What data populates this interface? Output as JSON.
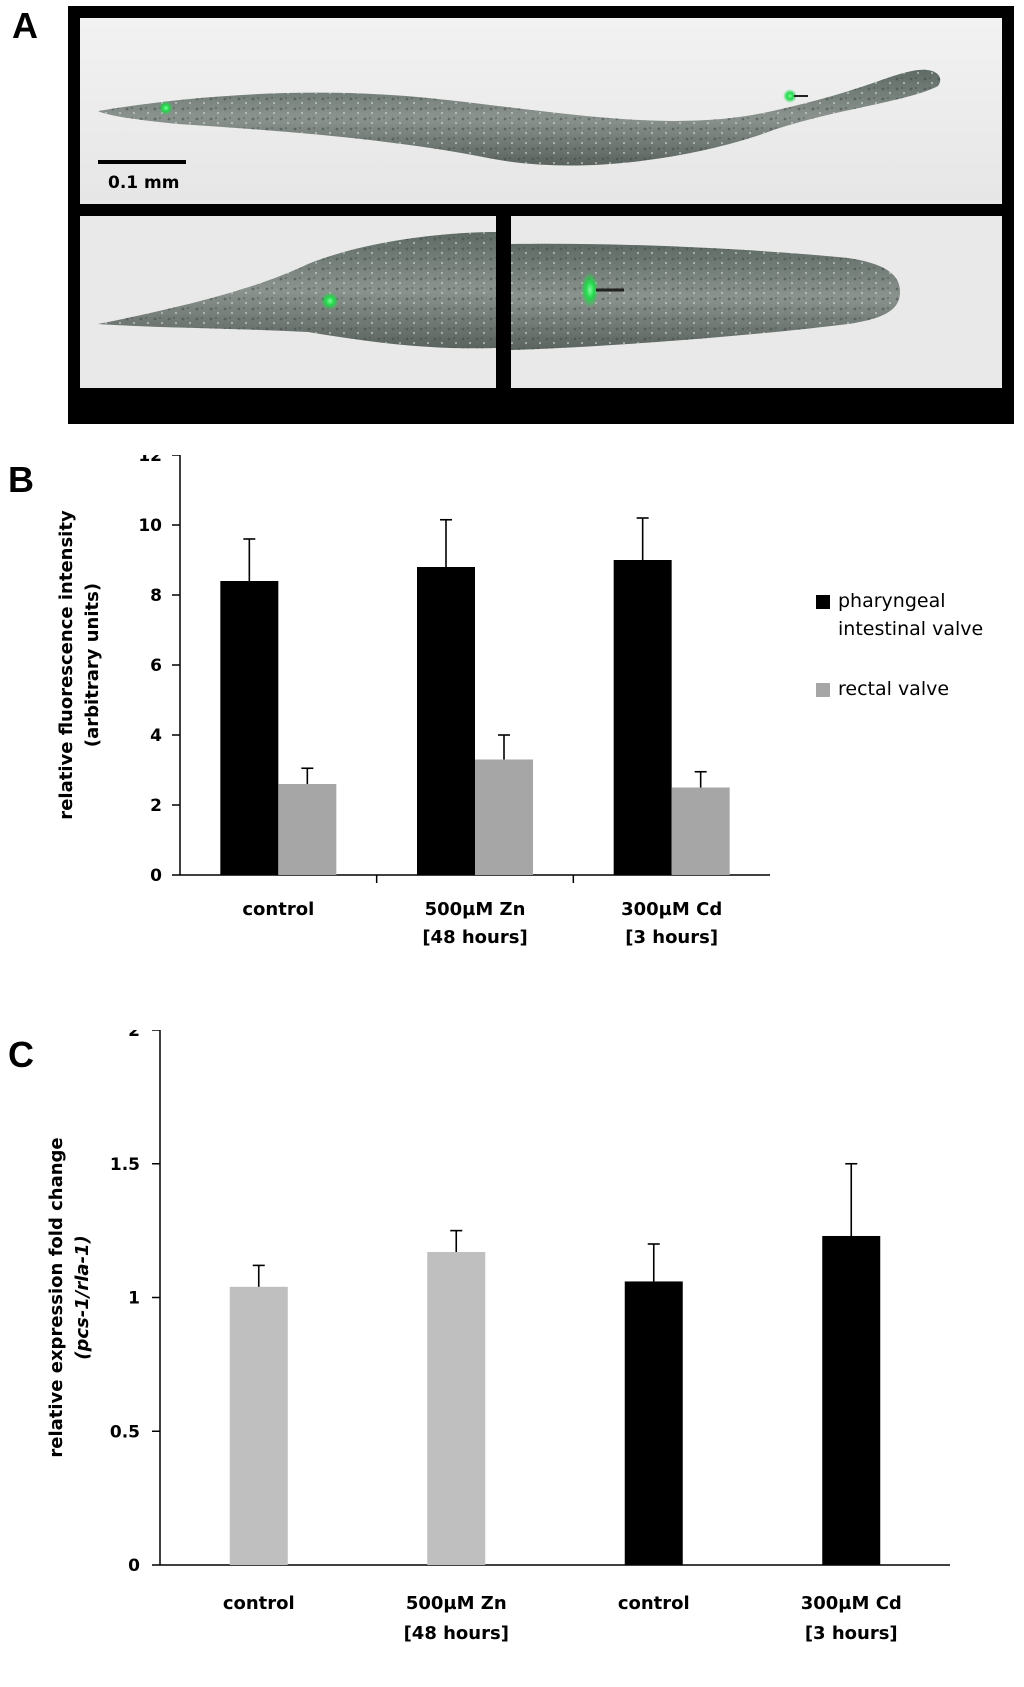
{
  "figure": {
    "panel_a": {
      "letter": "A",
      "scale_bar_label": "0.1 mm"
    },
    "panel_b": {
      "letter": "B"
    },
    "panel_c": {
      "letter": "C"
    }
  },
  "chart_data": [
    {
      "type": "bar",
      "title": "",
      "ylabel_lines": [
        "relative fluorescence intensity",
        "(arbitrary units)"
      ],
      "xlabel": "",
      "ylim": [
        0,
        12
      ],
      "yticks": [
        0,
        2,
        4,
        6,
        8,
        10,
        12
      ],
      "categories": [
        [
          "control"
        ],
        [
          "500µM Zn",
          "[48 hours]"
        ],
        [
          "300µM Cd",
          "[3 hours]"
        ]
      ],
      "legend_position": "right",
      "series": [
        {
          "name": "pharyngeal intestinal valve",
          "legend_lines": [
            "pharyngeal",
            "intestinal valve"
          ],
          "color": "#000000",
          "values": [
            8.4,
            8.8,
            9.0
          ],
          "errors": [
            1.2,
            1.35,
            1.2
          ]
        },
        {
          "name": "rectal valve",
          "legend_lines": [
            "rectal valve"
          ],
          "color": "#a6a6a6",
          "values": [
            2.6,
            3.3,
            2.5
          ],
          "errors": [
            0.45,
            0.7,
            0.45
          ]
        }
      ]
    },
    {
      "type": "bar",
      "title": "",
      "ylabel_lines": [
        "relative expression fold change",
        "(pcs-1/rla-1)"
      ],
      "xlabel": "",
      "ylim": [
        0,
        2
      ],
      "yticks": [
        0,
        0.5,
        1,
        1.5,
        2
      ],
      "ytick_labels": [
        "0",
        "0.5",
        "1",
        "1.5",
        "2"
      ],
      "categories": [
        [
          "control"
        ],
        [
          "500µM Zn",
          "[48 hours]"
        ],
        [
          "control"
        ],
        [
          "300µM Cd",
          "[3 hours]"
        ]
      ],
      "bar_colors": [
        "#bfbfbf",
        "#bfbfbf",
        "#000000",
        "#000000"
      ],
      "values": [
        1.04,
        1.17,
        1.06,
        1.23
      ],
      "errors": [
        0.08,
        0.08,
        0.14,
        0.27
      ]
    }
  ]
}
